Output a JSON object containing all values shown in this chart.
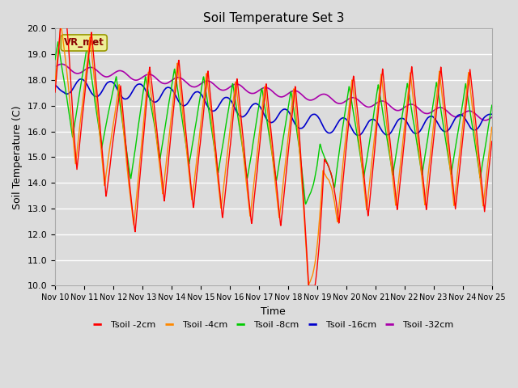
{
  "title": "Soil Temperature Set 3",
  "xlabel": "Time",
  "ylabel": "Soil Temperature (C)",
  "ylim": [
    10.0,
    20.0
  ],
  "yticks": [
    10.0,
    11.0,
    12.0,
    13.0,
    14.0,
    15.0,
    16.0,
    17.0,
    18.0,
    19.0,
    20.0
  ],
  "bg_color": "#dcdcdc",
  "grid_color": "#ffffff",
  "legend_label": "VR_met",
  "vr_met_facecolor": "#eeee99",
  "vr_met_edgecolor": "#999900",
  "vr_met_textcolor": "#880000",
  "series_colors": {
    "Tsoil -2cm": "#ff0000",
    "Tsoil -4cm": "#ff8800",
    "Tsoil -8cm": "#00cc00",
    "Tsoil -16cm": "#0000cc",
    "Tsoil -32cm": "#aa00aa"
  },
  "xtick_labels": [
    "Nov 10",
    "Nov 11",
    "Nov 12",
    "Nov 13",
    "Nov 14",
    "Nov 15",
    "Nov 16",
    "Nov 17",
    "Nov 18",
    "Nov 19",
    "Nov 20",
    "Nov 21",
    "Nov 22",
    "Nov 23",
    "Nov 24",
    "Nov 25"
  ],
  "n_points": 1500
}
